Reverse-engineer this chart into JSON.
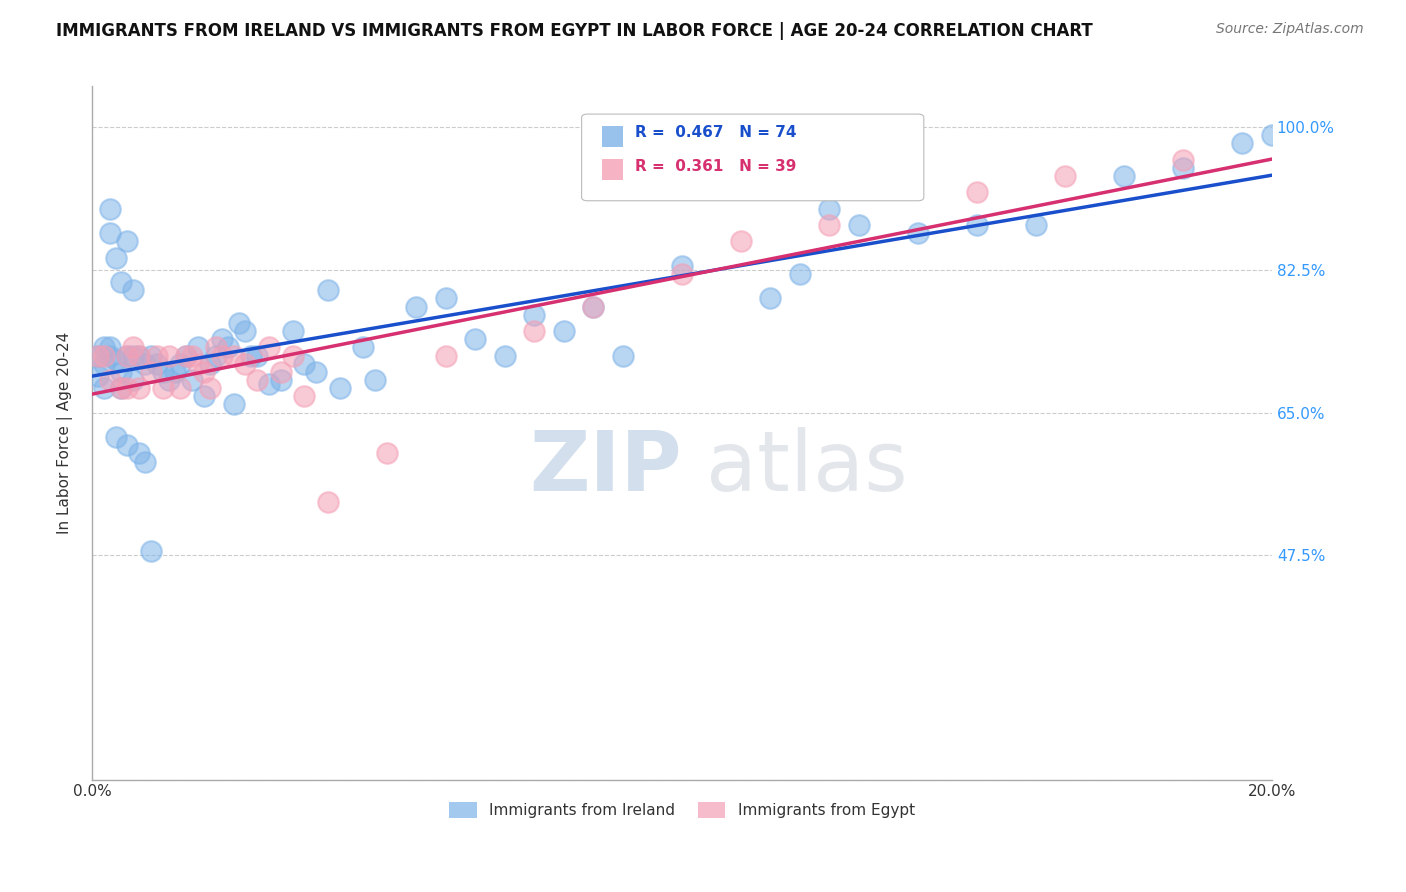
{
  "title": "IMMIGRANTS FROM IRELAND VS IMMIGRANTS FROM EGYPT IN LABOR FORCE | AGE 20-24 CORRELATION CHART",
  "source": "Source: ZipAtlas.com",
  "ylabel_label": "In Labor Force | Age 20-24",
  "legend_blue_label": "Immigrants from Ireland",
  "legend_pink_label": "Immigrants from Egypt",
  "R_blue": 0.467,
  "N_blue": 74,
  "R_pink": 0.361,
  "N_pink": 39,
  "blue_color": "#7EB3E8",
  "pink_color": "#F4A0B5",
  "line_blue": "#1A4FCC",
  "line_pink": "#D63070",
  "ytick_values": [
    1.0,
    0.825,
    0.65,
    0.475,
    0.2
  ],
  "ytick_labels": [
    "100.0%",
    "82.5%",
    "65.0%",
    "47.5%",
    ""
  ],
  "xlim": [
    0.0,
    0.2
  ],
  "ylim": [
    0.2,
    1.05
  ],
  "blue_x": [
    0.001,
    0.001,
    0.002,
    0.002,
    0.002,
    0.003,
    0.003,
    0.003,
    0.003,
    0.004,
    0.004,
    0.004,
    0.005,
    0.005,
    0.005,
    0.006,
    0.006,
    0.006,
    0.007,
    0.007,
    0.007,
    0.008,
    0.008,
    0.009,
    0.009,
    0.01,
    0.01,
    0.011,
    0.012,
    0.013,
    0.014,
    0.015,
    0.016,
    0.017,
    0.018,
    0.019,
    0.02,
    0.021,
    0.022,
    0.023,
    0.024,
    0.025,
    0.026,
    0.027,
    0.028,
    0.03,
    0.032,
    0.034,
    0.036,
    0.038,
    0.04,
    0.042,
    0.046,
    0.048,
    0.055,
    0.06,
    0.065,
    0.07,
    0.075,
    0.08,
    0.085,
    0.09,
    0.1,
    0.115,
    0.12,
    0.125,
    0.13,
    0.14,
    0.15,
    0.16,
    0.175,
    0.185,
    0.195,
    0.2
  ],
  "blue_y": [
    0.72,
    0.695,
    0.71,
    0.73,
    0.68,
    0.72,
    0.9,
    0.73,
    0.87,
    0.715,
    0.84,
    0.62,
    0.7,
    0.81,
    0.68,
    0.72,
    0.86,
    0.61,
    0.72,
    0.8,
    0.69,
    0.72,
    0.6,
    0.71,
    0.59,
    0.72,
    0.48,
    0.71,
    0.7,
    0.69,
    0.7,
    0.71,
    0.72,
    0.69,
    0.73,
    0.67,
    0.71,
    0.72,
    0.74,
    0.73,
    0.66,
    0.76,
    0.75,
    0.72,
    0.72,
    0.685,
    0.69,
    0.75,
    0.71,
    0.7,
    0.8,
    0.68,
    0.73,
    0.69,
    0.78,
    0.79,
    0.74,
    0.72,
    0.77,
    0.75,
    0.78,
    0.72,
    0.83,
    0.79,
    0.82,
    0.9,
    0.88,
    0.87,
    0.88,
    0.88,
    0.94,
    0.95,
    0.98,
    0.99
  ],
  "pink_x": [
    0.001,
    0.002,
    0.003,
    0.005,
    0.006,
    0.006,
    0.007,
    0.008,
    0.008,
    0.01,
    0.011,
    0.012,
    0.013,
    0.015,
    0.016,
    0.017,
    0.018,
    0.019,
    0.02,
    0.021,
    0.022,
    0.024,
    0.026,
    0.028,
    0.03,
    0.032,
    0.034,
    0.036,
    0.04,
    0.05,
    0.06,
    0.075,
    0.085,
    0.1,
    0.11,
    0.125,
    0.15,
    0.165,
    0.185
  ],
  "pink_y": [
    0.72,
    0.72,
    0.69,
    0.68,
    0.72,
    0.68,
    0.73,
    0.72,
    0.68,
    0.7,
    0.72,
    0.68,
    0.72,
    0.68,
    0.72,
    0.72,
    0.71,
    0.7,
    0.68,
    0.73,
    0.72,
    0.72,
    0.71,
    0.69,
    0.73,
    0.7,
    0.72,
    0.67,
    0.54,
    0.6,
    0.72,
    0.75,
    0.78,
    0.82,
    0.86,
    0.88,
    0.92,
    0.94,
    0.96
  ]
}
